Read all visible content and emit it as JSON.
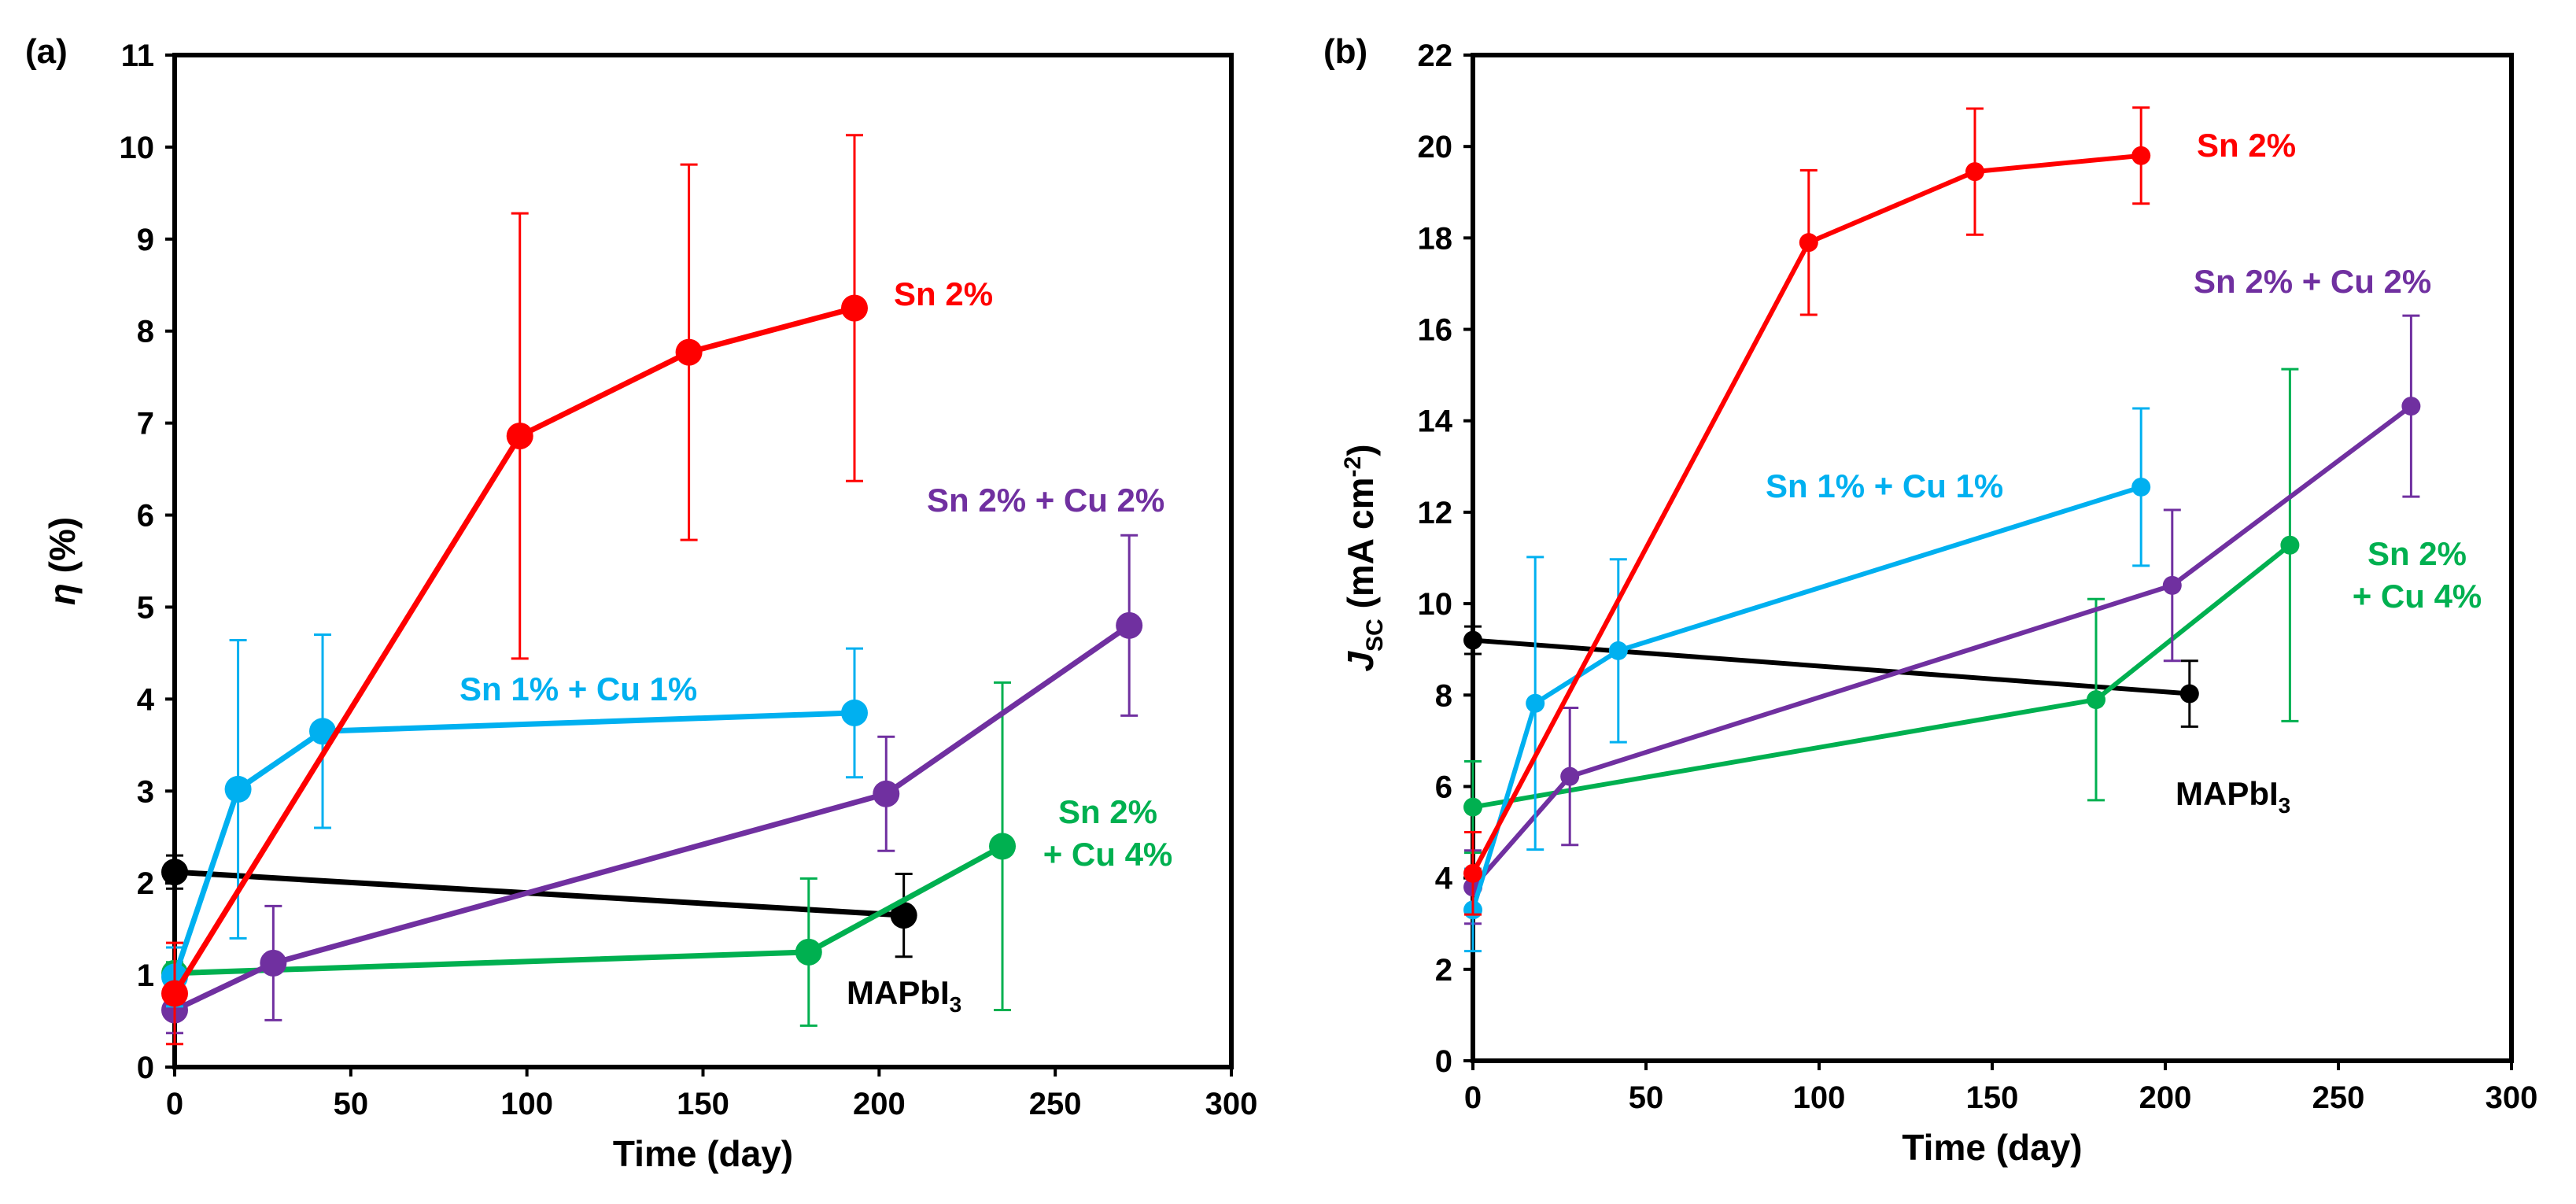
{
  "colors": {
    "red": "#ff0000",
    "blue": "#00b0f0",
    "purple": "#7030a0",
    "green": "#00b050",
    "black": "#000000"
  },
  "chart_data": [
    {
      "id": "a",
      "type": "line",
      "panel_label": "(a)",
      "xlabel": "Time (day)",
      "ylabel": "η (%)",
      "ylabel_symbol": "η",
      "ylabel_unit": " (%)",
      "xlim": [
        0,
        300
      ],
      "ylim": [
        0,
        11
      ],
      "xticks": [
        0,
        50,
        100,
        150,
        200,
        250,
        300
      ],
      "yticks": [
        0,
        1,
        2,
        3,
        4,
        5,
        6,
        7,
        8,
        9,
        10,
        11
      ],
      "series": [
        {
          "name": "MAPbI3",
          "label_main": "MAPbI",
          "label_sub": "3",
          "color_key": "black",
          "x": [
            0,
            207
          ],
          "y": [
            2.12,
            1.65
          ],
          "err": [
            0.18,
            0.45
          ]
        },
        {
          "name": "Sn 2% + Cu 4%",
          "label_lines": [
            "Sn 2%",
            "+ Cu 4%"
          ],
          "color_key": "green",
          "x": [
            0,
            180,
            235
          ],
          "y": [
            1.02,
            1.25,
            2.4
          ],
          "err": [
            0.12,
            0.8,
            1.78
          ]
        },
        {
          "name": "Sn 2% + Cu 2%",
          "label_lines": [
            "Sn 2% + Cu 2%"
          ],
          "color_key": "purple",
          "x": [
            0,
            28,
            202,
            271
          ],
          "y": [
            0.62,
            1.13,
            2.97,
            4.8
          ],
          "err": [
            0.25,
            0.62,
            0.62,
            0.98
          ]
        },
        {
          "name": "Sn 1% + Cu 1%",
          "label_lines": [
            "Sn 1% + Cu 1%"
          ],
          "color_key": "blue",
          "x": [
            0,
            18,
            42,
            193
          ],
          "y": [
            0.98,
            3.02,
            3.65,
            3.85
          ],
          "err": [
            0.32,
            1.62,
            1.05,
            0.7
          ]
        },
        {
          "name": "Sn 2%",
          "label_lines": [
            "Sn 2%"
          ],
          "color_key": "red",
          "x": [
            0,
            98,
            146,
            193
          ],
          "y": [
            0.8,
            6.86,
            7.77,
            8.25
          ],
          "err": [
            0.55,
            2.42,
            2.04,
            1.88
          ]
        }
      ]
    },
    {
      "id": "b",
      "type": "line",
      "panel_label": "(b)",
      "xlabel": "Time (day)",
      "ylabel": "JSC (mA cm-2)",
      "ylabel_main": "J",
      "ylabel_sub": "SC",
      "ylabel_unit": " (mA cm",
      "ylabel_sup": "-2",
      "ylabel_close": ")",
      "xlim": [
        0,
        300
      ],
      "ylim": [
        0,
        22
      ],
      "xticks": [
        0,
        50,
        100,
        150,
        200,
        250,
        300
      ],
      "yticks": [
        0,
        2,
        4,
        6,
        8,
        10,
        12,
        14,
        16,
        18,
        20,
        22
      ],
      "series": [
        {
          "name": "MAPbI3",
          "label_main": "MAPbI",
          "label_sub": "3",
          "color_key": "black",
          "x": [
            0,
            207
          ],
          "y": [
            9.2,
            8.03
          ],
          "err": [
            0.3,
            0.72
          ]
        },
        {
          "name": "Sn 2% + Cu 4%",
          "label_lines": [
            "Sn 2%",
            "+ Cu 4%"
          ],
          "color_key": "green",
          "x": [
            0,
            180,
            236
          ],
          "y": [
            5.55,
            7.9,
            11.28
          ],
          "err": [
            1.0,
            2.2,
            3.85
          ]
        },
        {
          "name": "Sn 2% + Cu 2%",
          "label_lines": [
            "Sn 2% + Cu 2%"
          ],
          "color_key": "purple",
          "x": [
            0,
            28,
            202,
            271
          ],
          "y": [
            3.8,
            6.22,
            10.4,
            14.32
          ],
          "err": [
            0.8,
            1.5,
            1.65,
            1.98
          ]
        },
        {
          "name": "Sn 1% + Cu 1%",
          "label_lines": [
            "Sn 1% + Cu 1%"
          ],
          "color_key": "blue",
          "x": [
            0,
            18,
            42,
            193
          ],
          "y": [
            3.3,
            7.82,
            8.97,
            12.55
          ],
          "err": [
            0.9,
            3.2,
            2.0,
            1.72
          ]
        },
        {
          "name": "Sn 2%",
          "label_lines": [
            "Sn 2%"
          ],
          "color_key": "red",
          "x": [
            0,
            97,
            145,
            193
          ],
          "y": [
            4.1,
            17.9,
            19.45,
            19.8
          ],
          "err": [
            0.9,
            1.58,
            1.38,
            1.05
          ]
        }
      ]
    }
  ]
}
